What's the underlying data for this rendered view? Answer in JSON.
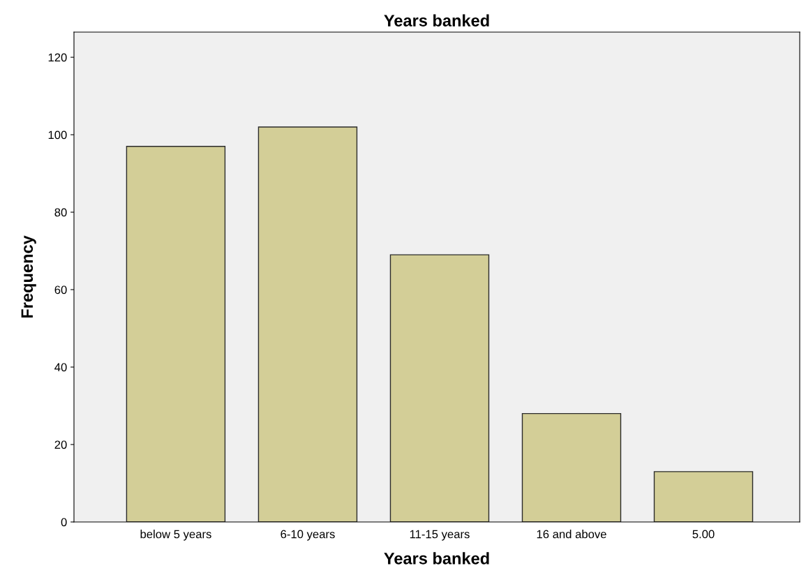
{
  "chart_data": {
    "type": "bar",
    "title": "Years banked",
    "xlabel": "Years banked",
    "ylabel": "Frequency",
    "categories": [
      "below 5 years",
      "6-10 years",
      "11-15 years",
      "16 and above",
      "5.00"
    ],
    "values": [
      97,
      102,
      69,
      28,
      13
    ],
    "color": "#d3ce97",
    "ylim": [
      0,
      126.5
    ],
    "yticks": [
      0,
      20,
      40,
      60,
      80,
      100,
      120
    ],
    "grid": false
  }
}
